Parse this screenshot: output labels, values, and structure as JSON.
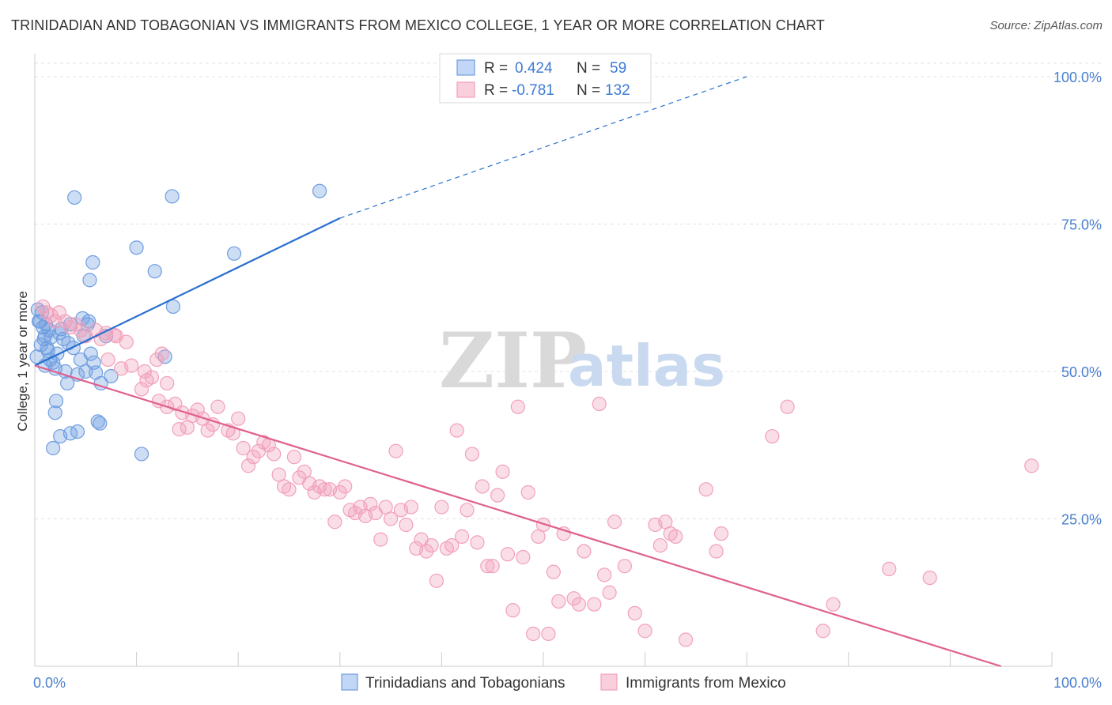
{
  "title": "TRINIDADIAN AND TOBAGONIAN VS IMMIGRANTS FROM MEXICO COLLEGE, 1 YEAR OR MORE CORRELATION CHART",
  "source": "Source: ZipAtlas.com",
  "watermark": {
    "zip": "ZIP",
    "atlas": "atlas"
  },
  "legend": {
    "r_label": "R =",
    "n_label": "N =",
    "rows": [
      {
        "r": "0.424",
        "n": "59",
        "color": "#8fb4ec"
      },
      {
        "r": "-0.781",
        "n": "132",
        "color": "#f4a8c0"
      }
    ]
  },
  "chart_data": {
    "type": "scatter",
    "ylabel": "College, 1 year or more",
    "xlim": [
      0,
      100
    ],
    "ylim": [
      0,
      100
    ],
    "x_tick_labels": [
      "0.0%",
      "100.0%"
    ],
    "y_ticks": [
      {
        "value": 25,
        "label": "25.0%"
      },
      {
        "value": 50,
        "label": "50.0%"
      },
      {
        "value": 75,
        "label": "75.0%"
      },
      {
        "value": 100,
        "label": "100.0%"
      }
    ],
    "grid": true,
    "series": [
      {
        "name": "Trinidadians and Tobagonians",
        "color": "#6f9ee0",
        "line_color": "#2a6fd0",
        "trend": {
          "x0": 0,
          "y0": 51,
          "x1": 30,
          "y1": 76,
          "dash_to_x": 70,
          "dash_to_y": 100
        },
        "points": [
          [
            0.3,
            60.5
          ],
          [
            0.5,
            58.5
          ],
          [
            0.8,
            57.5
          ],
          [
            1.0,
            56
          ],
          [
            1.2,
            54
          ],
          [
            1.5,
            52
          ],
          [
            1.8,
            51.5
          ],
          [
            2.0,
            50.5
          ],
          [
            0.4,
            58.5
          ],
          [
            0.9,
            55.5
          ],
          [
            1.3,
            53.5
          ],
          [
            1.6,
            55.8
          ],
          [
            2.2,
            53
          ],
          [
            2.4,
            56.5
          ],
          [
            2.8,
            55.5
          ],
          [
            3.0,
            50
          ],
          [
            3.2,
            48
          ],
          [
            3.5,
            58
          ],
          [
            3.8,
            54
          ],
          [
            4.2,
            49.5
          ],
          [
            4.5,
            52
          ],
          [
            4.8,
            56
          ],
          [
            5.0,
            50
          ],
          [
            5.2,
            58
          ],
          [
            5.5,
            53
          ],
          [
            5.8,
            51.5
          ],
          [
            6.0,
            49.8
          ],
          [
            6.5,
            48
          ],
          [
            7.0,
            56
          ],
          [
            7.5,
            49.2
          ],
          [
            2.1,
            45
          ],
          [
            2.0,
            43
          ],
          [
            2.5,
            39
          ],
          [
            3.5,
            39.5
          ],
          [
            4.2,
            39.8
          ],
          [
            6.2,
            41.5
          ],
          [
            6.4,
            41.2
          ],
          [
            1.8,
            37
          ],
          [
            10.5,
            36
          ],
          [
            3.9,
            79.5
          ],
          [
            13.5,
            79.7
          ],
          [
            28,
            80.6
          ],
          [
            10,
            71
          ],
          [
            19.6,
            70
          ],
          [
            5.7,
            68.5
          ],
          [
            11.8,
            67
          ],
          [
            5.4,
            65.5
          ],
          [
            13.6,
            61
          ],
          [
            12.8,
            52.5
          ],
          [
            5.3,
            58.5
          ],
          [
            0.2,
            52.5
          ],
          [
            0.6,
            54.5
          ],
          [
            1.1,
            58
          ],
          [
            1.4,
            57
          ],
          [
            2.6,
            57.2
          ],
          [
            0.7,
            60
          ],
          [
            1.0,
            51
          ],
          [
            3.3,
            54.8
          ],
          [
            4.7,
            59
          ]
        ]
      },
      {
        "name": "Immigrants from Mexico",
        "color": "#f2a0ba",
        "line_color": "#e0608e",
        "trend": {
          "x0": 0,
          "y0": 51,
          "x1": 95,
          "y1": 0
        },
        "points": [
          [
            0.8,
            61
          ],
          [
            1.2,
            60
          ],
          [
            1.6,
            59.5
          ],
          [
            2.0,
            58.5
          ],
          [
            2.4,
            60
          ],
          [
            3.0,
            58.5
          ],
          [
            3.5,
            57.5
          ],
          [
            4.0,
            58
          ],
          [
            4.5,
            57
          ],
          [
            5.0,
            56
          ],
          [
            6.0,
            57
          ],
          [
            6.5,
            55.5
          ],
          [
            7.0,
            56.5
          ],
          [
            8.0,
            56
          ],
          [
            9.0,
            55
          ],
          [
            7.2,
            52
          ],
          [
            8.5,
            50.5
          ],
          [
            9.5,
            51
          ],
          [
            10.5,
            47
          ],
          [
            11.0,
            48.5
          ],
          [
            11.5,
            49
          ],
          [
            12.0,
            52
          ],
          [
            12.5,
            53
          ],
          [
            13.0,
            48
          ],
          [
            12.2,
            45
          ],
          [
            13.0,
            44
          ],
          [
            13.8,
            44.5
          ],
          [
            14.5,
            43
          ],
          [
            15.0,
            40.5
          ],
          [
            15.5,
            42.5
          ],
          [
            16.0,
            43.5
          ],
          [
            16.5,
            42
          ],
          [
            17.0,
            40
          ],
          [
            17.5,
            41
          ],
          [
            18.0,
            44
          ],
          [
            19.0,
            40
          ],
          [
            19.5,
            39.5
          ],
          [
            20.0,
            42
          ],
          [
            20.5,
            37
          ],
          [
            21.0,
            34
          ],
          [
            21.5,
            35.5
          ],
          [
            22.0,
            36.5
          ],
          [
            22.5,
            38
          ],
          [
            23.0,
            37.5
          ],
          [
            23.5,
            36
          ],
          [
            24.0,
            32.5
          ],
          [
            24.5,
            30.5
          ],
          [
            25.0,
            30
          ],
          [
            25.5,
            35.5
          ],
          [
            26.0,
            32
          ],
          [
            26.5,
            33
          ],
          [
            27.0,
            31
          ],
          [
            27.5,
            29.5
          ],
          [
            28.0,
            30.5
          ],
          [
            28.5,
            30
          ],
          [
            29.0,
            30
          ],
          [
            29.5,
            24.5
          ],
          [
            30.0,
            29.5
          ],
          [
            30.5,
            30.5
          ],
          [
            31.0,
            26.5
          ],
          [
            31.5,
            26
          ],
          [
            32.0,
            27
          ],
          [
            32.5,
            25.5
          ],
          [
            33.0,
            27.5
          ],
          [
            33.5,
            26
          ],
          [
            34.0,
            21.5
          ],
          [
            34.5,
            27
          ],
          [
            35.0,
            25
          ],
          [
            35.5,
            36.5
          ],
          [
            36.0,
            26.5
          ],
          [
            36.5,
            24
          ],
          [
            37.0,
            27
          ],
          [
            37.5,
            20
          ],
          [
            38.0,
            21.5
          ],
          [
            38.5,
            19.5
          ],
          [
            39.0,
            20.5
          ],
          [
            39.5,
            14.5
          ],
          [
            40.0,
            27
          ],
          [
            40.5,
            20
          ],
          [
            41.0,
            20.5
          ],
          [
            41.5,
            40
          ],
          [
            42.0,
            22
          ],
          [
            42.5,
            26.5
          ],
          [
            43.0,
            36
          ],
          [
            43.5,
            21
          ],
          [
            44.0,
            30.5
          ],
          [
            44.5,
            17
          ],
          [
            45.0,
            17
          ],
          [
            45.5,
            29
          ],
          [
            46.0,
            33
          ],
          [
            46.5,
            19
          ],
          [
            47.0,
            9.5
          ],
          [
            47.5,
            44
          ],
          [
            48.0,
            18.5
          ],
          [
            48.5,
            29.5
          ],
          [
            49.0,
            5.5
          ],
          [
            49.5,
            22
          ],
          [
            50.0,
            24
          ],
          [
            50.5,
            5.5
          ],
          [
            51.0,
            16
          ],
          [
            51.5,
            11
          ],
          [
            52.0,
            22.5
          ],
          [
            53.0,
            11.5
          ],
          [
            53.5,
            10.5
          ],
          [
            54.0,
            19.5
          ],
          [
            55.0,
            10.5
          ],
          [
            55.5,
            44.5
          ],
          [
            56.0,
            15.5
          ],
          [
            56.5,
            12.5
          ],
          [
            57.0,
            24.5
          ],
          [
            58.0,
            17
          ],
          [
            59.0,
            9
          ],
          [
            60.0,
            6
          ],
          [
            61.0,
            24
          ],
          [
            61.5,
            20.5
          ],
          [
            62.0,
            24.5
          ],
          [
            62.5,
            22.5
          ],
          [
            63.0,
            22
          ],
          [
            64.0,
            4.5
          ],
          [
            66.0,
            30
          ],
          [
            67.0,
            19.5
          ],
          [
            67.5,
            22.5
          ],
          [
            72.5,
            39
          ],
          [
            74.0,
            44
          ],
          [
            77.5,
            6
          ],
          [
            78.5,
            10.5
          ],
          [
            84.0,
            16.5
          ],
          [
            88.0,
            15
          ],
          [
            98.0,
            34
          ],
          [
            7.8,
            56.2
          ],
          [
            10.8,
            50
          ],
          [
            14.2,
            40.2
          ]
        ]
      }
    ]
  }
}
